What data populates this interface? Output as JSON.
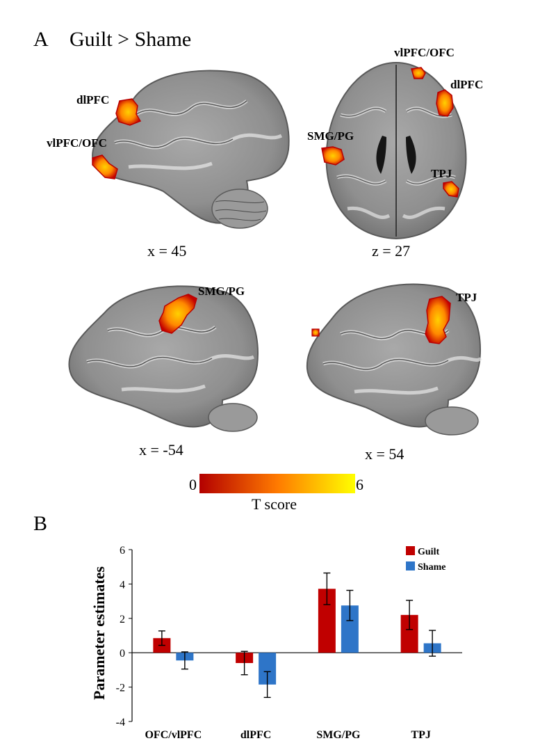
{
  "panelA": {
    "letter": "A",
    "title": "Guilt > Shame",
    "slices": [
      {
        "coord": "x = 45"
      },
      {
        "coord": "z = 27"
      },
      {
        "coord": "x = -54"
      },
      {
        "coord": "x = 54"
      }
    ],
    "labels": {
      "s1_dlpfc": "dlPFC",
      "s1_vlpfc": "vlPFC/OFC",
      "s2_vlpfc": "vlPFC/OFC",
      "s2_dlpfc": "dlPFC",
      "s2_smg": "SMG/PG",
      "s2_tpj": "TPJ",
      "s3_smg": "SMG/PG",
      "s4_tpj": "TPJ"
    },
    "colorbar": {
      "min_label": "0",
      "max_label": "6",
      "title": "T score",
      "colors": [
        "#b30000",
        "#ff7a00",
        "#ffff00"
      ]
    }
  },
  "panelB": {
    "letter": "B"
  },
  "chart_data": {
    "type": "bar",
    "ylabel": "Parameter estimates",
    "xlabel": "",
    "ylim": [
      -4,
      6
    ],
    "yticks": [
      -4,
      -2,
      0,
      2,
      4,
      6
    ],
    "categories": [
      "OFC/vlPFC",
      "dlPFC",
      "SMG/PG",
      "TPJ"
    ],
    "series": [
      {
        "name": "Guilt",
        "color": "#c00000",
        "values": [
          0.85,
          -0.6,
          3.72,
          2.2
        ],
        "errors": [
          0.42,
          0.68,
          0.92,
          0.85
        ]
      },
      {
        "name": "Shame",
        "color": "#2e75c8",
        "values": [
          -0.45,
          -1.85,
          2.75,
          0.55
        ],
        "errors": [
          0.5,
          0.75,
          0.88,
          0.75
        ]
      }
    ],
    "legend_position": "top-right",
    "grid": false
  }
}
